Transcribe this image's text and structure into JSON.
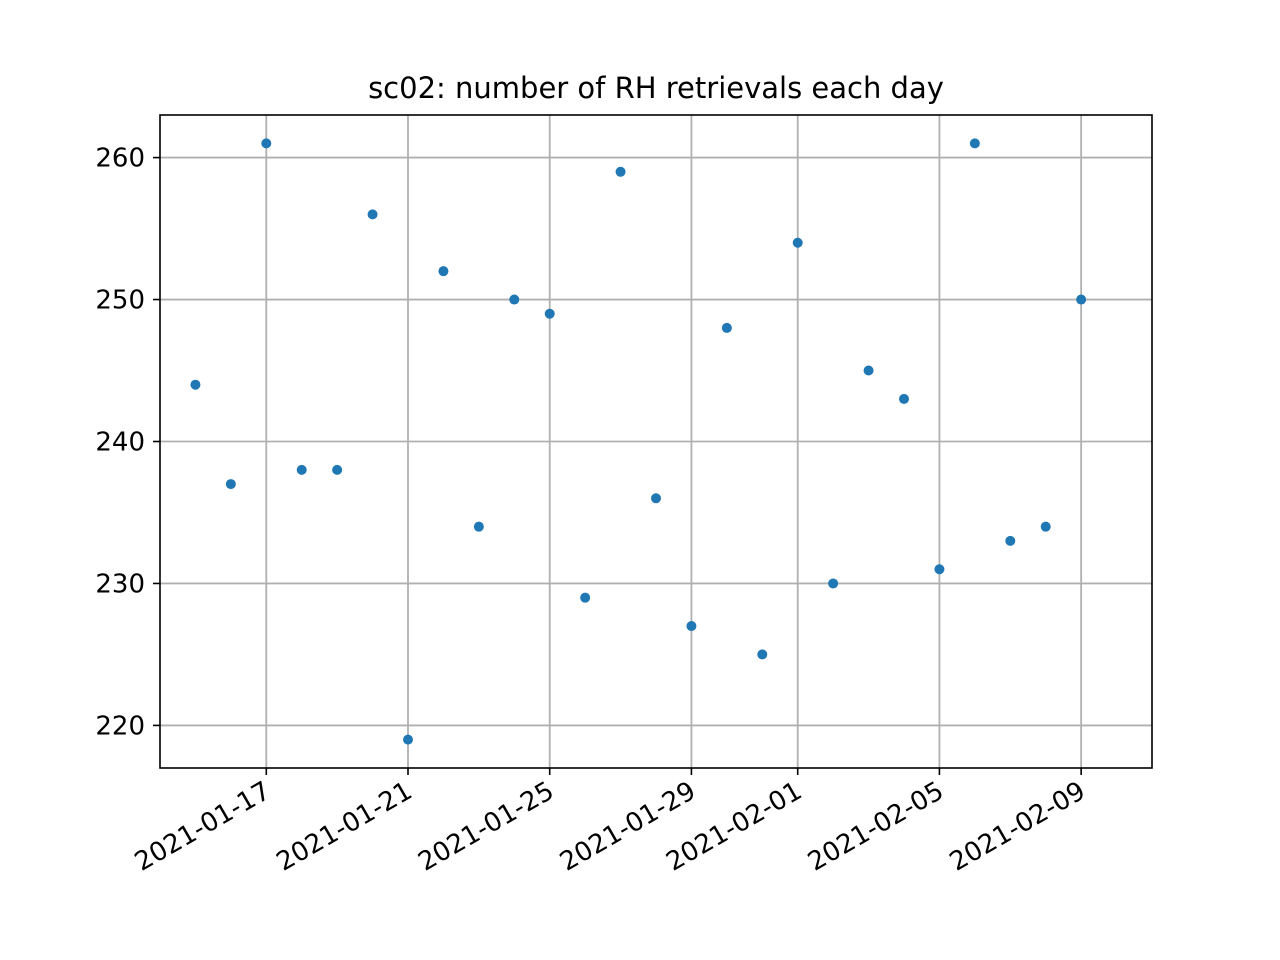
{
  "chart_data": {
    "type": "scatter",
    "title": "sc02: number of RH retrievals each day",
    "xlabel": "",
    "ylabel": "",
    "x_axis_type": "date",
    "xlim": [
      "2021-01-14",
      "2021-02-11"
    ],
    "ylim": [
      217,
      263
    ],
    "grid": true,
    "legend": "none",
    "marker_color": "#1f77b4",
    "x_ticks": [
      "2021-01-17",
      "2021-01-21",
      "2021-01-25",
      "2021-01-29",
      "2021-02-01",
      "2021-02-05",
      "2021-02-09"
    ],
    "y_ticks": [
      220,
      230,
      240,
      250,
      260
    ],
    "points": [
      {
        "x": "2021-01-15",
        "y": 244
      },
      {
        "x": "2021-01-16",
        "y": 237
      },
      {
        "x": "2021-01-17",
        "y": 261
      },
      {
        "x": "2021-01-18",
        "y": 238
      },
      {
        "x": "2021-01-19",
        "y": 238
      },
      {
        "x": "2021-01-20",
        "y": 256
      },
      {
        "x": "2021-01-21",
        "y": 219
      },
      {
        "x": "2021-01-22",
        "y": 252
      },
      {
        "x": "2021-01-23",
        "y": 234
      },
      {
        "x": "2021-01-24",
        "y": 250
      },
      {
        "x": "2021-01-25",
        "y": 249
      },
      {
        "x": "2021-01-26",
        "y": 229
      },
      {
        "x": "2021-01-27",
        "y": 259
      },
      {
        "x": "2021-01-28",
        "y": 236
      },
      {
        "x": "2021-01-29",
        "y": 227
      },
      {
        "x": "2021-01-30",
        "y": 248
      },
      {
        "x": "2021-01-31",
        "y": 225
      },
      {
        "x": "2021-02-01",
        "y": 254
      },
      {
        "x": "2021-02-02",
        "y": 230
      },
      {
        "x": "2021-02-03",
        "y": 245
      },
      {
        "x": "2021-02-04",
        "y": 243
      },
      {
        "x": "2021-02-05",
        "y": 231
      },
      {
        "x": "2021-02-06",
        "y": 261
      },
      {
        "x": "2021-02-07",
        "y": 233
      },
      {
        "x": "2021-02-08",
        "y": 234
      },
      {
        "x": "2021-02-09",
        "y": 250
      }
    ]
  }
}
